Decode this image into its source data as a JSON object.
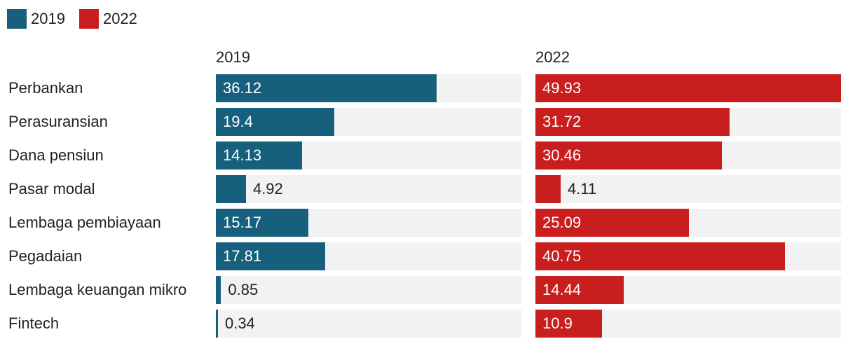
{
  "chart_data": {
    "type": "bar",
    "orientation": "horizontal",
    "layout": "small-multiples",
    "legend": [
      "2019",
      "2022"
    ],
    "legend_position": "top-left",
    "categories": [
      "Perbankan",
      "Perasuransian",
      "Dana pensiun",
      "Pasar modal",
      "Lembaga pembiayaan",
      "Pegadaian",
      "Lembaga keuangan mikro",
      "Fintech"
    ],
    "xlim": [
      0,
      49.93
    ],
    "series": [
      {
        "name": "2019",
        "color": "#17607d",
        "values": [
          36.12,
          19.4,
          14.13,
          4.92,
          15.17,
          17.81,
          0.85,
          0.34
        ],
        "labels": [
          "36.12",
          "19.4",
          "14.13",
          "4.92",
          "15.17",
          "17.81",
          "0.85",
          "0.34"
        ]
      },
      {
        "name": "2022",
        "color": "#c81e1e",
        "values": [
          49.93,
          31.72,
          30.46,
          4.11,
          25.09,
          40.75,
          14.44,
          10.9
        ],
        "labels": [
          "49.93",
          "31.72",
          "30.46",
          "4.11",
          "25.09",
          "40.75",
          "14.44",
          "10.9"
        ]
      }
    ],
    "grid": false
  }
}
